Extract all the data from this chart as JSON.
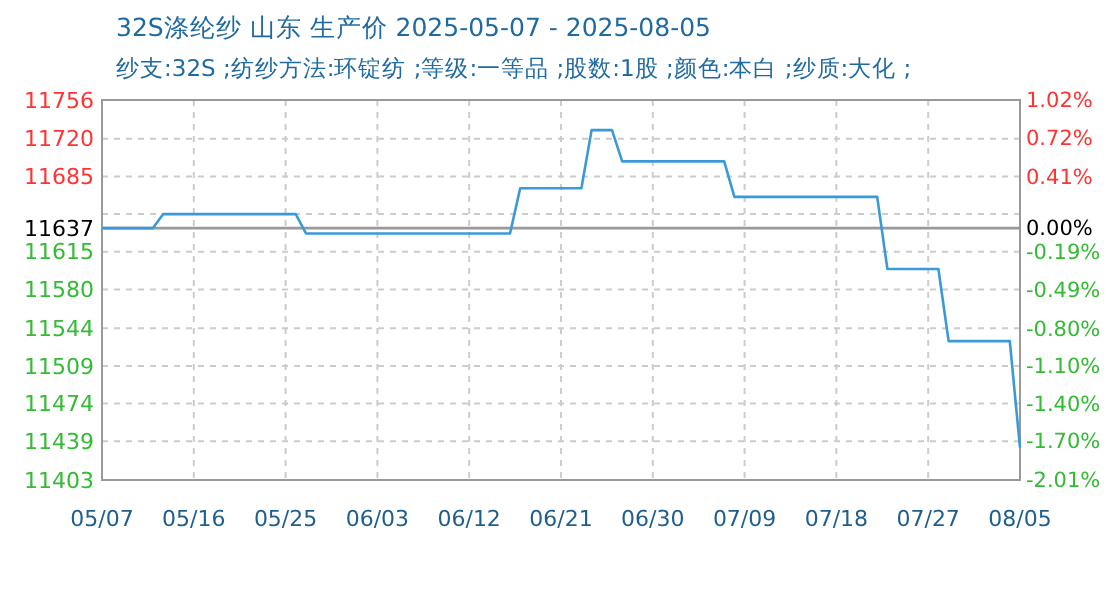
{
  "chart_data": {
    "type": "line",
    "title": "32S涤纶纱 山东 生产价 2025-05-07 - 2025-08-05",
    "subtitle": "纱支:32S ;纺纱方法:环锭纺 ;等级:一等品 ;股数:1股 ;颜色:本白 ;纱质:大化 ;",
    "x": [
      "2025-05-07",
      "2025-05-12",
      "2025-05-13",
      "2025-05-26",
      "2025-05-27",
      "2025-06-16",
      "2025-06-17",
      "2025-06-23",
      "2025-06-24",
      "2025-06-26",
      "2025-06-27",
      "2025-07-07",
      "2025-07-08",
      "2025-07-22",
      "2025-07-23",
      "2025-07-28",
      "2025-07-29",
      "2025-08-04",
      "2025-08-05"
    ],
    "series": [
      {
        "color": "#3a9ad9",
        "values": [
          11637,
          11637,
          11650,
          11650,
          11632,
          11632,
          11674,
          11674,
          11728,
          11728,
          11699,
          11699,
          11666,
          11666,
          11599,
          11599,
          11532,
          11532,
          11433
        ]
      }
    ],
    "xlim": [
      "2025-05-07",
      "2025-08-05"
    ],
    "xticks": [
      {
        "value": "2025-05-07",
        "label": "05/07"
      },
      {
        "value": "2025-05-16",
        "label": "05/16"
      },
      {
        "value": "2025-05-25",
        "label": "05/25"
      },
      {
        "value": "2025-06-03",
        "label": "06/03"
      },
      {
        "value": "2025-06-12",
        "label": "06/12"
      },
      {
        "value": "2025-06-21",
        "label": "06/21"
      },
      {
        "value": "2025-06-30",
        "label": "06/30"
      },
      {
        "value": "2025-07-09",
        "label": "07/09"
      },
      {
        "value": "2025-07-18",
        "label": "07/18"
      },
      {
        "value": "2025-07-27",
        "label": "07/27"
      },
      {
        "value": "2025-08-05",
        "label": "08/05"
      }
    ],
    "ylim": [
      11403,
      11756
    ],
    "yticks": [
      11403,
      11439,
      11474,
      11509,
      11544,
      11580,
      11615,
      {
        "value": 11650,
        "label": null
      },
      11685,
      11720,
      11756
    ],
    "y2lim": [
      -2.01,
      1.02
    ],
    "y2ticks": [
      {
        "value": -2.01,
        "label": "-2.01%"
      },
      {
        "value": -1.7,
        "label": "-1.70%"
      },
      {
        "value": -1.4,
        "label": "-1.40%"
      },
      {
        "value": -1.1,
        "label": "-1.10%"
      },
      {
        "value": -0.8,
        "label": "-0.80%"
      },
      {
        "value": -0.49,
        "label": "-0.49%"
      },
      {
        "value": -0.19,
        "label": "-0.19%"
      },
      {
        "value": 0,
        "label": "0.00%"
      },
      {
        "value": 0.41,
        "label": "0.41%"
      },
      {
        "value": 0.72,
        "label": "0.72%"
      },
      {
        "value": 1.02,
        "label": "1.02%"
      }
    ],
    "ref_lines": [
      {
        "axis": "y",
        "value": 11637,
        "label": "11637",
        "color": "#999999"
      }
    ],
    "grid": true,
    "line_style": "solid",
    "marker": "none"
  }
}
